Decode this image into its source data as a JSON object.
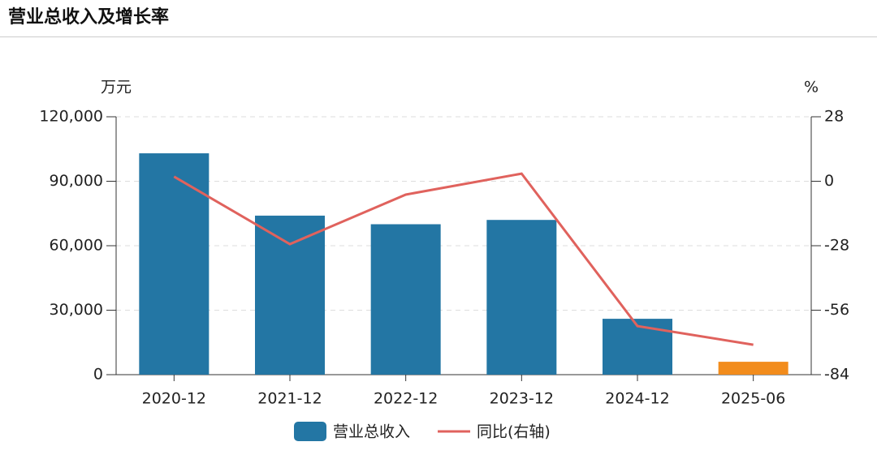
{
  "chart_data": {
    "type": "bar-line",
    "title": "营业总收入及增长率",
    "y_unit": "万元",
    "y2_unit": "%",
    "categories": [
      "2020-12",
      "2021-12",
      "2022-12",
      "2023-12",
      "2024-12",
      "2025-06"
    ],
    "series": [
      {
        "name": "营业总收入",
        "type": "bar",
        "color": "#2376a4",
        "colors": [
          "#2376a4",
          "#2376a4",
          "#2376a4",
          "#2376a4",
          "#2376a4",
          "#f28c1c"
        ],
        "values": [
          103000,
          74000,
          70000,
          72000,
          26000,
          6000
        ]
      },
      {
        "name": "同比(右轴)",
        "type": "line",
        "axis": "y2",
        "color": "#e0625d",
        "values": [
          2,
          -27.3,
          -5.8,
          3.3,
          -62.9,
          -71
        ]
      }
    ],
    "ylim": [
      0,
      120000
    ],
    "yticks": [
      0,
      {
        "value": 30000,
        "label": "30,000"
      },
      {
        "value": 60000,
        "label": "60,000"
      },
      {
        "value": 90000,
        "label": "90,000"
      },
      {
        "value": 120000,
        "label": "120,000"
      }
    ],
    "y2lim": [
      -84,
      28
    ],
    "y2ticks": [
      -84,
      -56,
      -28,
      0,
      28
    ],
    "grid": true
  }
}
